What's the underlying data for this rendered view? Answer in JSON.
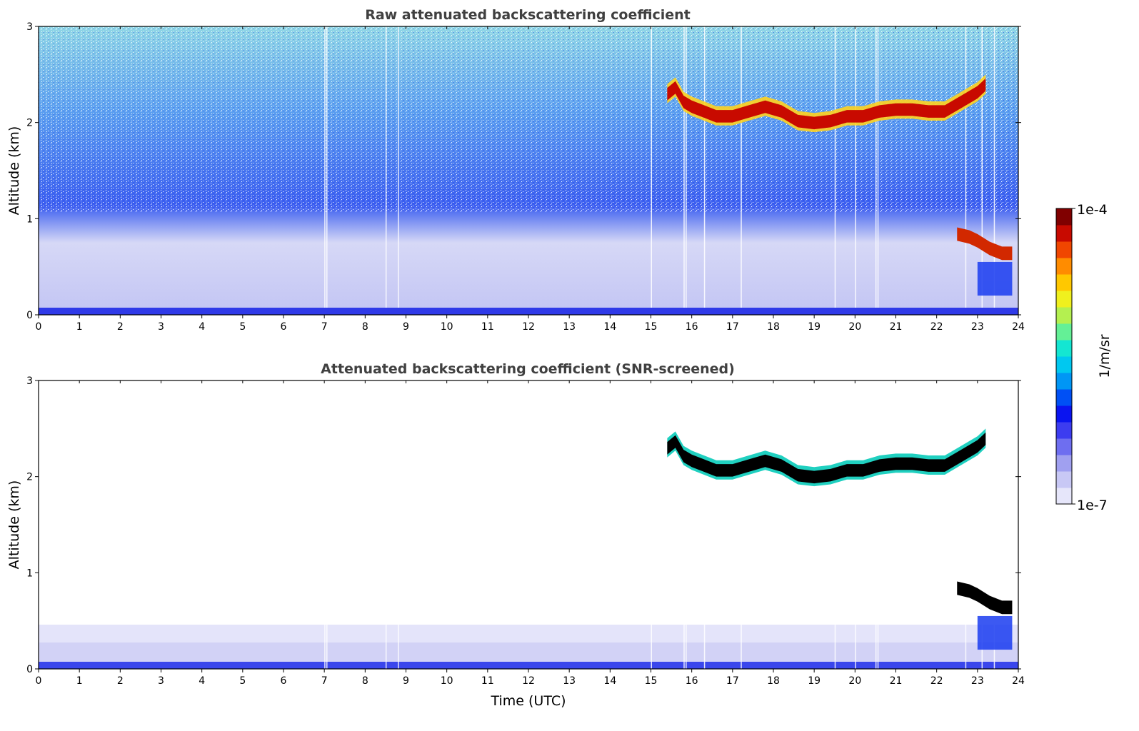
{
  "chart_data": [
    {
      "type": "heatmap",
      "title": "Raw attenuated backscattering coefficient",
      "xlabel": "",
      "ylabel": "Altitude (km)",
      "xlim": [
        0,
        24
      ],
      "ylim": [
        0,
        3
      ],
      "xticks": [
        "0",
        "1",
        "2",
        "3",
        "4",
        "5",
        "6",
        "7",
        "8",
        "9",
        "10",
        "11",
        "12",
        "13",
        "14",
        "15",
        "16",
        "17",
        "18",
        "19",
        "20",
        "21",
        "22",
        "23",
        "24"
      ],
      "yticks": [
        "0",
        "1",
        "2",
        "3"
      ],
      "features": {
        "cloud_upper_layer": {
          "x": [
            15.4,
            15.6,
            15.8,
            16.0,
            16.3,
            16.6,
            17.0,
            17.4,
            17.8,
            18.2,
            18.6,
            19.0,
            19.4,
            19.8,
            20.2,
            20.6,
            21.0,
            21.4,
            21.8,
            22.2,
            22.6,
            23.0,
            23.2
          ],
          "y": [
            2.28,
            2.35,
            2.2,
            2.15,
            2.1,
            2.05,
            2.05,
            2.1,
            2.15,
            2.1,
            2.0,
            1.98,
            2.0,
            2.05,
            2.05,
            2.1,
            2.12,
            2.12,
            2.1,
            2.1,
            2.2,
            2.3,
            2.38
          ]
        },
        "cloud_lower_layer": {
          "x": [
            22.5,
            22.8,
            23.0,
            23.3,
            23.6,
            23.85
          ],
          "y": [
            0.85,
            0.82,
            0.78,
            0.7,
            0.65,
            0.65
          ]
        },
        "surface_layer_top_km": 0.06,
        "boundary_layer_top_km": 0.45
      }
    },
    {
      "type": "heatmap",
      "title": "Attenuated backscattering coefficient (SNR-screened)",
      "xlabel": "Time (UTC)",
      "ylabel": "Altitude (km)",
      "xlim": [
        0,
        24
      ],
      "ylim": [
        0,
        3
      ],
      "xticks": [
        "0",
        "1",
        "2",
        "3",
        "4",
        "5",
        "6",
        "7",
        "8",
        "9",
        "10",
        "11",
        "12",
        "13",
        "14",
        "15",
        "16",
        "17",
        "18",
        "19",
        "20",
        "21",
        "22",
        "23",
        "24"
      ],
      "yticks": [
        "0",
        "1",
        "2",
        "3"
      ],
      "features": {
        "cloud_upper_layer": {
          "x": [
            15.4,
            15.6,
            15.8,
            16.0,
            16.3,
            16.6,
            17.0,
            17.4,
            17.8,
            18.2,
            18.6,
            19.0,
            19.4,
            19.8,
            20.2,
            20.6,
            21.0,
            21.4,
            21.8,
            22.2,
            22.6,
            23.0,
            23.2
          ],
          "y": [
            2.28,
            2.35,
            2.2,
            2.15,
            2.1,
            2.05,
            2.05,
            2.1,
            2.15,
            2.1,
            2.0,
            1.98,
            2.0,
            2.05,
            2.05,
            2.1,
            2.12,
            2.12,
            2.1,
            2.1,
            2.2,
            2.3,
            2.38
          ]
        },
        "cloud_lower_layer": {
          "x": [
            22.5,
            22.8,
            23.0,
            23.3,
            23.6,
            23.85
          ],
          "y": [
            0.85,
            0.82,
            0.78,
            0.7,
            0.65,
            0.65
          ]
        },
        "surface_layer_top_km": 0.06,
        "boundary_layer_top_km": 0.45
      }
    }
  ],
  "colorbar": {
    "label": "1/m/sr",
    "max_label": "1e-4",
    "min_label": "1e-7",
    "colors": [
      "#e6e6fa",
      "#c8c8f5",
      "#a0a0f0",
      "#6e6ef0",
      "#3c3cf0",
      "#0a14f0",
      "#0050f5",
      "#0096f5",
      "#00c8f0",
      "#14e6d2",
      "#64f096",
      "#b4f050",
      "#f0f01e",
      "#ffc800",
      "#ff8c00",
      "#f04600",
      "#c80a00",
      "#800000"
    ]
  }
}
